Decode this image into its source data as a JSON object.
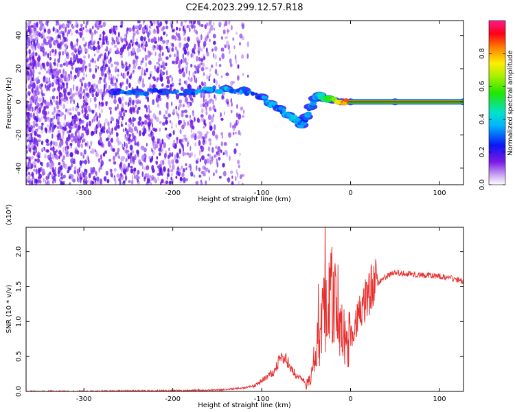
{
  "title": "C2E4.2023.299.12.57.R18",
  "chart_data": [
    {
      "type": "heatmap",
      "title": "C2E4.2023.299.12.57.R18",
      "xlabel": "Height of straight line (km)",
      "ylabel": "Frequency (Hz)",
      "xlim": [
        -365,
        127
      ],
      "ylim": [
        -50,
        49
      ],
      "x_ticks": [
        "-300",
        "-200",
        "-100",
        "0",
        "100"
      ],
      "y_ticks": [
        "-40",
        "-20",
        "0",
        "20",
        "40"
      ],
      "colorbar": {
        "label": "Normalized spectral amplitude",
        "range": [
          0,
          1
        ],
        "ticks": [
          "0.0",
          "0.2",
          "0.4",
          "0.6",
          "0.8"
        ]
      },
      "ridge": {
        "x": [
          -265,
          -240,
          -210,
          -180,
          -160,
          -140,
          -120,
          -100,
          -90,
          -80,
          -70,
          -60,
          -55,
          -50,
          -45,
          -40,
          -35,
          -30,
          -25,
          -20,
          -10,
          0,
          50,
          127
        ],
        "y": [
          6,
          6,
          6,
          6,
          7,
          8,
          7,
          3,
          -1,
          -4,
          -8,
          -11,
          -14,
          -9,
          -3,
          2,
          4,
          2,
          2,
          1,
          0,
          0,
          0,
          0
        ],
        "amplitude": [
          0.25,
          0.3,
          0.3,
          0.3,
          0.35,
          0.35,
          0.3,
          0.3,
          0.35,
          0.3,
          0.35,
          0.35,
          0.3,
          0.3,
          0.35,
          0.35,
          0.4,
          0.5,
          0.5,
          0.55,
          0.8,
          0.9,
          0.9,
          0.9
        ]
      }
    },
    {
      "type": "line",
      "xlabel": "Height of straight line (km)",
      "ylabel": "SNR (10 * v/v)",
      "y_multiplier": "(x10⁴)",
      "xlim": [
        -365,
        127
      ],
      "ylim": [
        0,
        2.35
      ],
      "x_ticks": [
        "-300",
        "-200",
        "-100",
        "0",
        "100"
      ],
      "y_ticks": [
        "0.0",
        "0.5",
        "1.0",
        "1.5",
        "2.0"
      ],
      "series": [
        {
          "color": "#e8312f",
          "x": [
            -365,
            -300,
            -200,
            -150,
            -120,
            -105,
            -95,
            -85,
            -80,
            -75,
            -70,
            -65,
            -60,
            -55,
            -50,
            -45,
            -40,
            -35,
            -30,
            -25,
            -22,
            -20,
            -18,
            -15,
            -13,
            -10,
            -5,
            0,
            5,
            10,
            15,
            20,
            25,
            30,
            40,
            50,
            60,
            70,
            80,
            90,
            100,
            110,
            120,
            127
          ],
          "y": [
            0.0,
            0.0,
            0.01,
            0.02,
            0.05,
            0.1,
            0.2,
            0.3,
            0.45,
            0.5,
            0.4,
            0.3,
            0.2,
            0.2,
            0.1,
            0.2,
            0.5,
            0.8,
            1.1,
            1.2,
            1.5,
            1.2,
            1.4,
            1.3,
            1.1,
            0.9,
            0.7,
            0.8,
            0.9,
            1.2,
            1.3,
            1.4,
            1.5,
            1.55,
            1.65,
            1.7,
            1.69,
            1.68,
            1.66,
            1.66,
            1.65,
            1.63,
            1.6,
            1.58
          ]
        }
      ]
    }
  ]
}
